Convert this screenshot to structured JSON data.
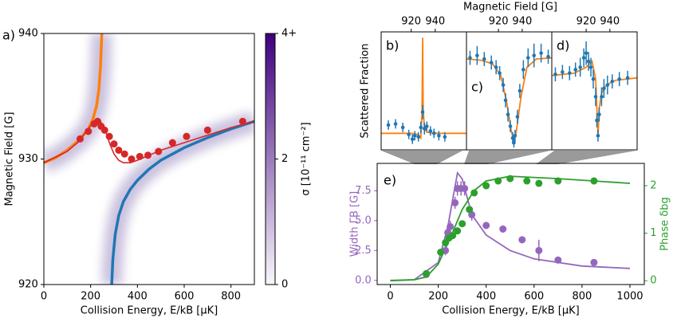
{
  "inset_xlabel": "Magnetic Field [G]",
  "inset_ylabel": "Scattered Fraction",
  "chart_data": [
    {
      "type": "line",
      "panel_label": "a)",
      "xlabel": "Collision Energy, E/kB [μK]",
      "ylabel": "Magnetic Field [G]",
      "xlim": [
        0,
        900
      ],
      "ylim": [
        920,
        940
      ],
      "xticks": [
        0,
        200,
        400,
        600,
        800
      ],
      "yticks": [
        920,
        930,
        940
      ],
      "colorbar": {
        "label": "σ [10⁻¹¹ cm⁻²]",
        "lim": [
          0,
          4
        ],
        "ticks": [
          0,
          2,
          {
            "value": 4,
            "label": "4+"
          }
        ],
        "colors": [
          "#f8f6fb",
          "#3f007d"
        ]
      },
      "series": [
        {
          "style": "line",
          "color": "#ff7f0e",
          "x": [
            0,
            50,
            100,
            150,
            190,
            210,
            225,
            235,
            242,
            248
          ],
          "values": [
            929.7,
            930.1,
            930.7,
            931.5,
            932.4,
            933.2,
            934.2,
            935.5,
            937.3,
            940
          ]
        },
        {
          "style": "line",
          "color": "#1f77b4",
          "x": [
            290,
            295,
            305,
            320,
            340,
            370,
            400,
            450,
            500,
            600,
            700,
            800,
            900
          ],
          "values": [
            920,
            922,
            924,
            925.5,
            926.6,
            927.6,
            928.3,
            929.2,
            929.9,
            930.9,
            931.7,
            932.4,
            933
          ]
        },
        {
          "style": "line",
          "color": "#d62728",
          "x": [
            0,
            100,
            150,
            190,
            215,
            235,
            250,
            265,
            280,
            300,
            320,
            340,
            370,
            400,
            450,
            500,
            600,
            700,
            800,
            900
          ],
          "values": [
            929.7,
            930.6,
            931.4,
            932.4,
            933,
            933.1,
            932.8,
            932.2,
            931.3,
            930.4,
            929.9,
            929.7,
            929.7,
            929.9,
            930.3,
            930.7,
            931.3,
            931.9,
            932.5,
            933
          ]
        },
        {
          "style": "points",
          "color": "#d62728",
          "x": [
            155,
            190,
            215,
            230,
            245,
            260,
            280,
            300,
            320,
            345,
            375,
            410,
            445,
            490,
            550,
            610,
            700,
            850
          ],
          "values": [
            931.6,
            932.2,
            932.8,
            933,
            932.6,
            932.3,
            931.8,
            931.2,
            930.7,
            930.4,
            930,
            930.2,
            930.3,
            930.6,
            931.3,
            931.8,
            932.3,
            933
          ]
        }
      ]
    },
    {
      "type": "scatter",
      "panel_label": "b)",
      "xaxis": "top",
      "xlim": [
        895,
        966
      ],
      "ylim": [
        0,
        1
      ],
      "xticks": [
        920,
        940
      ],
      "series": [
        {
          "style": "line",
          "color": "#ff7f0e",
          "x": [
            895,
            920,
            926,
            928,
            929,
            929.6,
            930,
            931,
            933,
            940,
            966
          ],
          "values": [
            0.14,
            0.14,
            0.13,
            0.1,
            0.3,
            0.95,
            0.35,
            0.18,
            0.15,
            0.14,
            0.14
          ]
        },
        {
          "style": "points",
          "color": "#1f77b4",
          "x": [
            901,
            907,
            913,
            918,
            921,
            923,
            926,
            928,
            929.5,
            931,
            933,
            936,
            939,
            943,
            948
          ],
          "values": [
            0.21,
            0.22,
            0.19,
            0.13,
            0.09,
            0.12,
            0.11,
            0.19,
            0.32,
            0.18,
            0.2,
            0.16,
            0.14,
            0.12,
            0.11
          ],
          "errors": [
            0.04,
            0.04,
            0.04,
            0.04,
            0.04,
            0.04,
            0.04,
            0.05,
            0.06,
            0.05,
            0.04,
            0.04,
            0.04,
            0.04,
            0.04
          ]
        }
      ]
    },
    {
      "type": "scatter",
      "panel_label": "c)",
      "xaxis": "top",
      "xlim": [
        893,
        965
      ],
      "ylim": [
        0,
        1
      ],
      "xticks": [
        920,
        940
      ],
      "series": [
        {
          "style": "line",
          "color": "#ff7f0e",
          "x": [
            893,
            905,
            915,
            922,
            927,
            931,
            933,
            935,
            939,
            944,
            952,
            965
          ],
          "values": [
            0.77,
            0.76,
            0.73,
            0.63,
            0.4,
            0.15,
            0.08,
            0.15,
            0.45,
            0.7,
            0.77,
            0.78
          ]
        },
        {
          "style": "points",
          "color": "#1f77b4",
          "x": [
            896,
            902,
            908,
            914,
            918,
            921,
            924,
            926,
            928,
            930,
            932,
            933,
            934,
            936,
            938,
            941,
            945,
            950,
            956,
            962
          ],
          "values": [
            0.78,
            0.8,
            0.77,
            0.74,
            0.7,
            0.65,
            0.55,
            0.42,
            0.3,
            0.2,
            0.1,
            0.06,
            0.12,
            0.28,
            0.5,
            0.68,
            0.78,
            0.8,
            0.82,
            0.79
          ],
          "errors": [
            0.06,
            0.08,
            0.06,
            0.06,
            0.06,
            0.06,
            0.06,
            0.06,
            0.06,
            0.05,
            0.05,
            0.04,
            0.05,
            0.06,
            0.06,
            0.08,
            0.08,
            0.1,
            0.08,
            0.06
          ]
        }
      ]
    },
    {
      "type": "scatter",
      "panel_label": "d)",
      "xaxis": "top",
      "xlim": [
        891,
        963
      ],
      "ylim": [
        0,
        1
      ],
      "xticks": [
        920,
        940
      ],
      "series": [
        {
          "style": "line",
          "color": "#ff7f0e",
          "x": [
            891,
            910,
            920,
            925,
            928,
            930,
            931,
            933,
            937,
            945,
            963
          ],
          "values": [
            0.63,
            0.65,
            0.7,
            0.75,
            0.6,
            0.12,
            0.35,
            0.48,
            0.55,
            0.59,
            0.61
          ]
        },
        {
          "style": "points",
          "color": "#1f77b4",
          "x": [
            894,
            900,
            906,
            911,
            915,
            918,
            920,
            922,
            924,
            926,
            928,
            929,
            930,
            931,
            933,
            935,
            938,
            942,
            948,
            955
          ],
          "values": [
            0.64,
            0.66,
            0.65,
            0.68,
            0.7,
            0.78,
            0.82,
            0.75,
            0.7,
            0.6,
            0.45,
            0.25,
            0.12,
            0.3,
            0.45,
            0.52,
            0.55,
            0.58,
            0.6,
            0.61
          ],
          "errors": [
            0.06,
            0.06,
            0.06,
            0.06,
            0.08,
            0.08,
            0.1,
            0.08,
            0.08,
            0.08,
            0.08,
            0.06,
            0.05,
            0.06,
            0.08,
            0.08,
            0.08,
            0.06,
            0.06,
            0.06
          ]
        }
      ]
    },
    {
      "type": "line",
      "panel_label": "e)",
      "xlabel": "Collision Energy, E/kB [μK]",
      "ylabel": "Width ΓB [G]",
      "y2label": "Phase δbg",
      "ycolor": "#9467bd",
      "y2color": "#2ca02c",
      "xlim": [
        -55,
        1060
      ],
      "ylim": [
        -0.35,
        9.8
      ],
      "y2lim": [
        -0.08,
        2.47
      ],
      "xticks": [
        0,
        200,
        400,
        600,
        800,
        1000
      ],
      "yticks": [
        {
          "value": 0,
          "label": "0.0"
        },
        2.5,
        {
          "value": 5,
          "label": "5.0"
        },
        7.5
      ],
      "y2ticks": [
        0,
        1,
        2
      ],
      "series": [
        {
          "style": "line",
          "color": "#9467bd",
          "x": [
            0,
            100,
            200,
            240,
            280,
            300,
            340,
            400,
            500,
            600,
            800,
            1000
          ],
          "values": [
            0,
            0.05,
            1.5,
            4.5,
            9,
            8.5,
            5.5,
            3.8,
            2.5,
            1.8,
            1.2,
            1
          ]
        },
        {
          "style": "line",
          "color": "#2ca02c",
          "axis": "y2",
          "x": [
            0,
            100,
            150,
            200,
            250,
            300,
            350,
            400,
            500,
            700,
            1000
          ],
          "values": [
            0,
            0.02,
            0.08,
            0.35,
            0.9,
            1.5,
            1.9,
            2.1,
            2.2,
            2.15,
            2.05
          ]
        },
        {
          "style": "points",
          "color": "#9467bd",
          "x": [
            150,
            230,
            240,
            250,
            270,
            280,
            295,
            310,
            340,
            400,
            470,
            550,
            620,
            700,
            850
          ],
          "values": [
            0.5,
            2.5,
            4,
            4.5,
            6.5,
            7.7,
            7.7,
            7.7,
            5.5,
            4.6,
            4.3,
            3.4,
            2.5,
            1.7,
            1.5
          ],
          "errors": [
            0.3,
            0.4,
            0.5,
            0.5,
            0.5,
            0.6,
            0.6,
            0.6,
            0.5,
            0.3,
            0.3,
            0.3,
            0.9,
            0.2,
            0.2
          ]
        },
        {
          "style": "points",
          "color": "#2ca02c",
          "axis": "y2",
          "x": [
            150,
            210,
            230,
            245,
            260,
            280,
            300,
            330,
            350,
            400,
            450,
            500,
            570,
            620,
            700,
            850
          ],
          "values": [
            0.15,
            0.6,
            0.8,
            0.9,
            0.95,
            1.05,
            1.2,
            1.5,
            1.85,
            2,
            2.1,
            2.15,
            2.1,
            2.05,
            2.1,
            2.1
          ],
          "errors": [
            0.05,
            0.05,
            0.05,
            0.05,
            0.05,
            0.05,
            0.05,
            0.05,
            0.05,
            0.05,
            0.05,
            0.05,
            0.05,
            0.05,
            0.05,
            0.05
          ]
        }
      ]
    }
  ]
}
